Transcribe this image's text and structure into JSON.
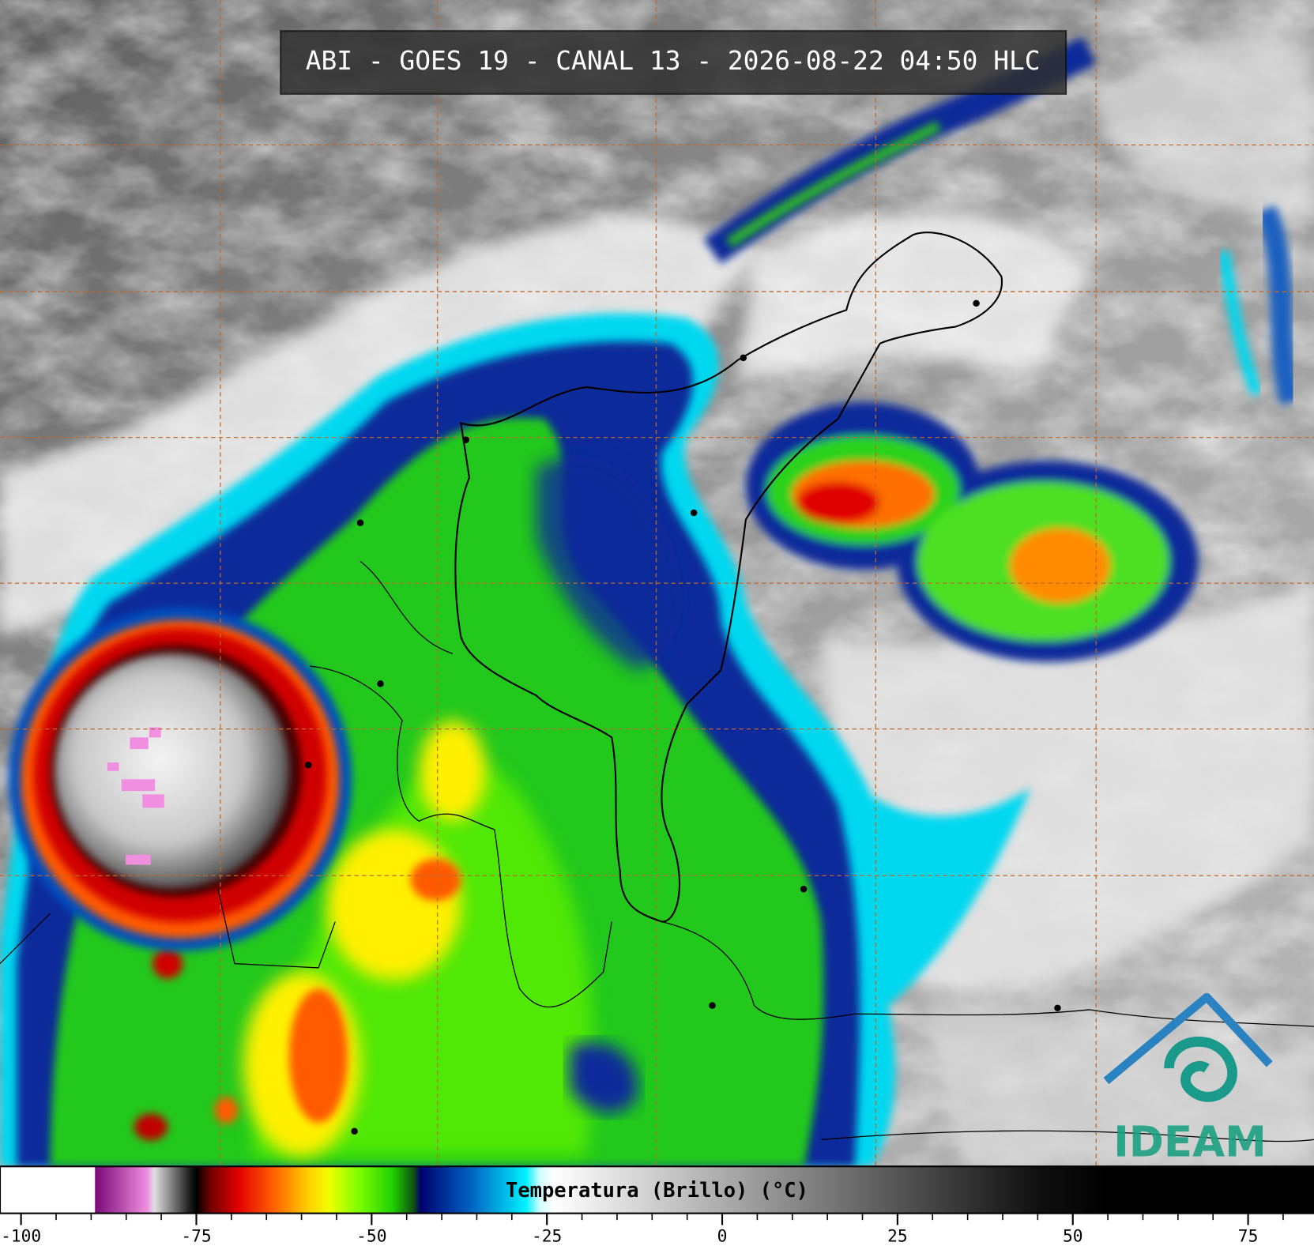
{
  "header": {
    "title": "ABI - GOES 19 - CANAL 13 - 2026-08-22 04:50 HLC"
  },
  "colorbar": {
    "label": "Temperatura (Brillo) (°C)",
    "xlim": [
      -103,
      84.4
    ],
    "ticks": [
      -100,
      -75,
      -50,
      -25,
      0,
      25,
      50,
      75
    ],
    "minor_tick_step": 5,
    "stops": [
      {
        "value": -103,
        "color": "#ffffff"
      },
      {
        "value": -89.5,
        "color": "#ffffff"
      },
      {
        "value": -89.4,
        "color": "#7a0a7a"
      },
      {
        "value": -82,
        "color": "#f08ee0"
      },
      {
        "value": -81,
        "color": "#e0e0e0"
      },
      {
        "value": -76,
        "color": "#202020"
      },
      {
        "value": -75,
        "color": "#000000"
      },
      {
        "value": -73,
        "color": "#700000"
      },
      {
        "value": -69,
        "color": "#e00000"
      },
      {
        "value": -64,
        "color": "#ff6000"
      },
      {
        "value": -59,
        "color": "#ffd000"
      },
      {
        "value": -56,
        "color": "#f0ff00"
      },
      {
        "value": -52,
        "color": "#80ff00"
      },
      {
        "value": -47,
        "color": "#20d000"
      },
      {
        "value": -44,
        "color": "#105010"
      },
      {
        "value": -43,
        "color": "#000070"
      },
      {
        "value": -36,
        "color": "#0060c0"
      },
      {
        "value": -28,
        "color": "#00f0ff"
      },
      {
        "value": -26,
        "color": "#d0fdff"
      },
      {
        "value": -24,
        "color": "#ffffff"
      },
      {
        "value": 45,
        "color": "#101010"
      },
      {
        "value": 55,
        "color": "#000000"
      },
      {
        "value": 84.4,
        "color": "#000000"
      }
    ]
  },
  "logo": {
    "text": "IDEAM"
  }
}
